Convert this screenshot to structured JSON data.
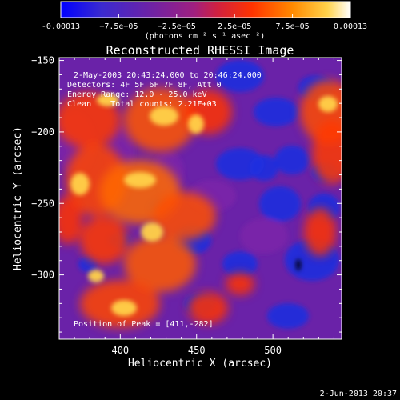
{
  "colorbar": {
    "tick_labels": [
      "-0.00013",
      "−7.5e−05",
      "−2.5e−05",
      "2.5e−05",
      "7.5e−05",
      "0.00013"
    ],
    "unit_label": "(photons cm⁻² s⁻¹ asec⁻²)",
    "range": [
      -0.00013,
      0.00013
    ],
    "colors": [
      "#0000ff",
      "#4030c0",
      "#7a1f9f",
      "#c02060",
      "#ff3300",
      "#ff8800",
      "#ffd24a",
      "#ffffff"
    ]
  },
  "chart_data": {
    "type": "heatmap",
    "title": "Reconstructed RHESSI Image",
    "xlabel": "Heliocentric X (arcsec)",
    "ylabel": "Heliocentric Y (arcsec)",
    "xlim": [
      360,
      545
    ],
    "ylim": [
      -345,
      -148
    ],
    "xticks": [
      400,
      450,
      500
    ],
    "yticks": [
      -150,
      -200,
      -250,
      -300
    ],
    "info_lines": [
      "2-May-2003 20:43:24.000 to 20:46:24.000",
      "Detectors: 4F 5F 6F 7F 8F, Att 0",
      "Energy Range: 12.0 - 25.0 keV",
      "Clean    Total counts: 2.21E+03"
    ],
    "peak_label": "Position of Peak = [411,-282]",
    "peak": [
      411,
      -282
    ],
    "z_range": [
      -0.00013,
      0.00013
    ]
  },
  "footer": {
    "timestamp": "2-Jun-2013 20:37"
  }
}
